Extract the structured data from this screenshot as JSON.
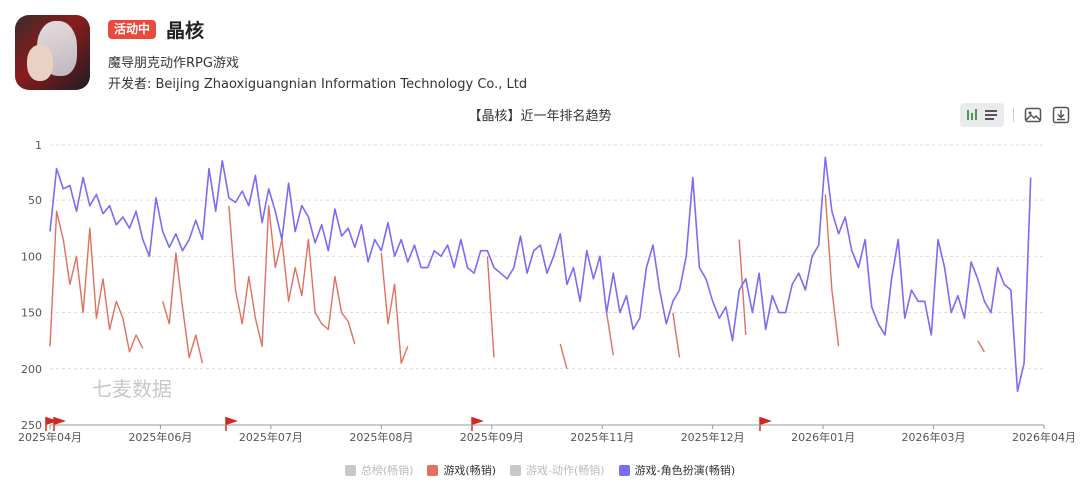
{
  "app": {
    "badge": "活动中",
    "name": "晶核",
    "category": "魔导朋克动作RPG游戏",
    "developer": "开发者: Beijing Zhaoxiguangnian Information Technology Co., Ltd"
  },
  "toolbar": {
    "icons": [
      "bar-chart-icon",
      "list-icon",
      "image-icon",
      "download-icon"
    ]
  },
  "watermark": "七麦数据",
  "chart_data": {
    "type": "line",
    "title": "【晶核】近一年排名趋势",
    "y_axis": {
      "ticks": [
        1,
        50,
        100,
        150,
        200,
        250
      ],
      "inverted": true,
      "range": [
        1,
        250
      ]
    },
    "x_axis": {
      "ticks": [
        "2025年04月",
        "2025年06月",
        "2025年07月",
        "2025年08月",
        "2025年09月",
        "2025年11月",
        "2025年12月",
        "2026年01月",
        "2026年03月",
        "2026年04月"
      ]
    },
    "grid": "horizontal dashed",
    "legend_position": "bottom",
    "event_flags": 5,
    "series": [
      {
        "name": "总榜(畅销)",
        "color": "#c8c8c8",
        "values": []
      },
      {
        "name": "游戏(畅销)",
        "color": "#e07060",
        "points": [
          [
            0,
            180
          ],
          [
            1,
            60
          ],
          [
            2,
            85
          ],
          [
            3,
            125
          ],
          [
            4,
            100
          ],
          [
            5,
            150
          ],
          [
            6,
            75
          ],
          [
            7,
            155
          ],
          [
            8,
            120
          ],
          [
            9,
            165
          ],
          [
            10,
            140
          ],
          [
            11,
            155
          ],
          [
            12,
            185
          ],
          [
            13,
            170
          ],
          [
            14,
            182
          ],
          null,
          [
            17,
            140
          ],
          [
            18,
            160
          ],
          [
            19,
            97
          ],
          [
            20,
            145
          ],
          [
            21,
            190
          ],
          [
            22,
            170
          ],
          [
            23,
            195
          ],
          null,
          [
            27,
            55
          ],
          [
            28,
            130
          ],
          [
            29,
            160
          ],
          [
            30,
            118
          ],
          [
            31,
            155
          ],
          [
            32,
            180
          ],
          [
            33,
            55
          ],
          [
            34,
            110
          ],
          [
            35,
            85
          ],
          [
            36,
            140
          ],
          [
            37,
            110
          ],
          [
            38,
            135
          ],
          [
            39,
            85
          ],
          [
            40,
            150
          ],
          [
            41,
            160
          ],
          [
            42,
            165
          ],
          [
            43,
            118
          ],
          [
            44,
            150
          ],
          [
            45,
            158
          ],
          [
            46,
            178
          ],
          null,
          [
            50,
            97
          ],
          [
            51,
            160
          ],
          [
            52,
            125
          ],
          [
            53,
            195
          ],
          [
            54,
            180
          ],
          null,
          [
            66,
            100
          ],
          [
            67,
            190
          ],
          null,
          [
            77,
            178
          ],
          [
            78,
            200
          ],
          null,
          [
            84,
            150
          ],
          [
            85,
            188
          ],
          null,
          [
            94,
            150
          ],
          [
            95,
            190
          ],
          null,
          [
            104,
            85
          ],
          [
            105,
            170
          ],
          null,
          [
            117,
            45
          ],
          [
            118,
            130
          ],
          [
            119,
            180
          ],
          null,
          [
            140,
            175
          ],
          [
            141,
            185
          ]
        ]
      },
      {
        "name": "游戏-动作(畅销)",
        "color": "#c8c8c8",
        "values": []
      },
      {
        "name": "游戏-角色扮演(畅销)",
        "color": "#7b6cf6",
        "values": [
          78,
          22,
          40,
          37,
          60,
          30,
          55,
          45,
          62,
          55,
          72,
          65,
          75,
          60,
          85,
          100,
          48,
          78,
          92,
          80,
          95,
          85,
          68,
          85,
          22,
          60,
          15,
          48,
          52,
          42,
          55,
          28,
          70,
          40,
          60,
          85,
          35,
          78,
          55,
          65,
          88,
          72,
          95,
          58,
          82,
          75,
          92,
          72,
          105,
          85,
          95,
          70,
          100,
          85,
          105,
          90,
          110,
          110,
          95,
          100,
          90,
          110,
          85,
          110,
          115,
          95,
          95,
          110,
          115,
          120,
          110,
          82,
          115,
          95,
          90,
          115,
          100,
          80,
          125,
          110,
          140,
          95,
          120,
          100,
          150,
          115,
          150,
          135,
          165,
          155,
          110,
          90,
          130,
          160,
          140,
          130,
          100,
          30,
          110,
          120,
          140,
          155,
          145,
          175,
          130,
          120,
          150,
          115,
          165,
          135,
          150,
          150,
          125,
          115,
          130,
          100,
          90,
          12,
          60,
          80,
          65,
          95,
          110,
          85,
          145,
          160,
          170,
          120,
          85,
          155,
          130,
          140,
          140,
          170,
          85,
          110,
          150,
          135,
          155,
          105,
          120,
          140,
          150,
          110,
          125,
          130,
          220,
          195,
          30
        ]
      }
    ]
  }
}
